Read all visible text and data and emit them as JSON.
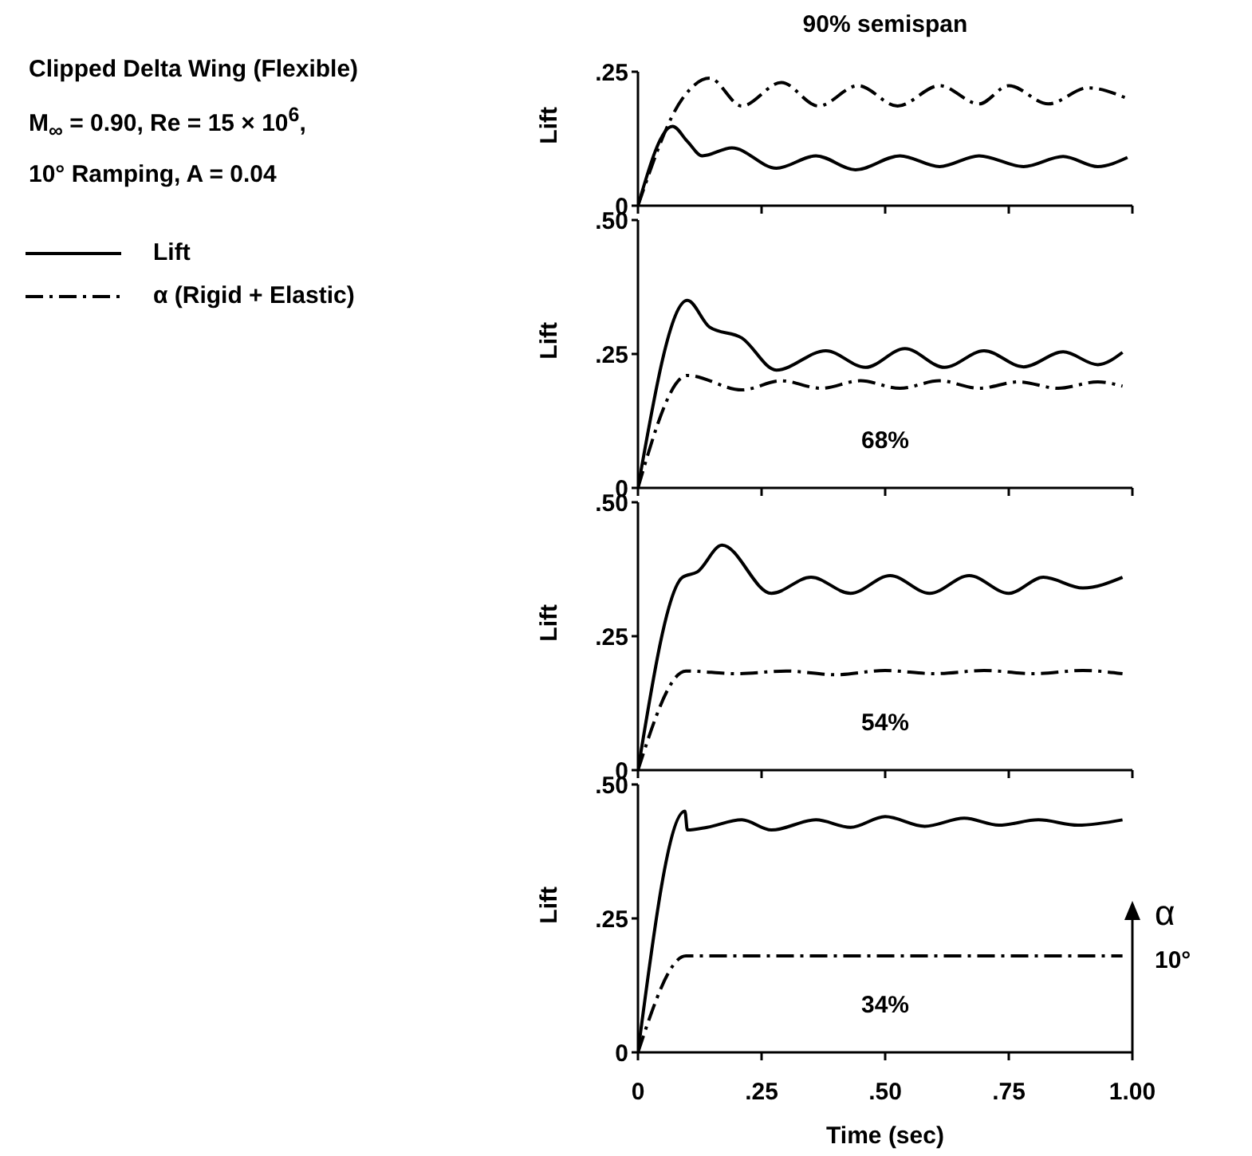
{
  "chart_data": [
    {
      "type": "line",
      "title": "90% semispan",
      "ylabel": "Lift",
      "legend": "left",
      "tick_labels": "y",
      "grid": false,
      "annotations": [
        "Clipped Delta Wing (Flexible)",
        "M$_{∞}$ = 0.90, Re = 15 × 10$^{6}$,",
        "10° Ramping, A = 0.04"
      ],
      "xlim": [
        0,
        1
      ],
      "xticks": [
        {
          "value": 0,
          "label": null
        },
        {
          "value": 0.25,
          "label": null
        },
        {
          "value": 0.5,
          "label": null
        },
        {
          "value": 0.75,
          "label": null
        },
        {
          "value": 1,
          "label": null
        }
      ],
      "ylim": [
        0,
        0.25
      ],
      "yticks": [
        {
          "value": 0,
          "label": "0"
        },
        {
          "value": 0.25,
          "label": ".25"
        }
      ],
      "series": [
        {
          "name": "Lift",
          "color": "#000000",
          "line_style": "solid",
          "x": [
            0,
            0.07,
            0.1,
            0.13,
            0.19,
            0.28,
            0.36,
            0.44,
            0.53,
            0.61,
            0.69,
            0.78,
            0.86,
            0.93,
            0.99
          ],
          "values": [
            0,
            0.148,
            0.12,
            0.093,
            0.108,
            0.07,
            0.093,
            0.067,
            0.093,
            0.073,
            0.093,
            0.073,
            0.092,
            0.073,
            0.09
          ]
        },
        {
          "name": "α (Rigid + Elastic)",
          "color": "#000000",
          "line_style": "dashed",
          "x": [
            0,
            0.09,
            0.145,
            0.21,
            0.29,
            0.365,
            0.445,
            0.525,
            0.61,
            0.69,
            0.75,
            0.83,
            0.91,
            0.99
          ],
          "values": [
            0,
            0.2,
            0.238,
            0.186,
            0.23,
            0.186,
            0.224,
            0.186,
            0.224,
            0.19,
            0.224,
            0.19,
            0.22,
            0.2
          ]
        }
      ]
    },
    {
      "type": "line",
      "title": "68%",
      "ylabel": "Lift",
      "tick_labels": "y",
      "grid": false,
      "xlim": [
        0,
        1
      ],
      "xticks": [
        {
          "value": 0,
          "label": null
        },
        {
          "value": 0.25,
          "label": null
        },
        {
          "value": 0.5,
          "label": null
        },
        {
          "value": 0.75,
          "label": null
        },
        {
          "value": 1,
          "label": null
        }
      ],
      "ylim": [
        0,
        0.5
      ],
      "yticks": [
        {
          "value": 0,
          "label": "0"
        },
        {
          "value": 0.25,
          "label": ".25"
        },
        {
          "value": 0.5,
          "label": ".50"
        }
      ],
      "series": [
        {
          "color": "#000000",
          "line_style": "solid",
          "x": [
            0,
            0.1,
            0.145,
            0.21,
            0.28,
            0.38,
            0.46,
            0.54,
            0.62,
            0.7,
            0.78,
            0.86,
            0.93,
            0.98
          ],
          "values": [
            0,
            0.35,
            0.3,
            0.28,
            0.22,
            0.256,
            0.225,
            0.26,
            0.225,
            0.256,
            0.226,
            0.254,
            0.23,
            0.253
          ]
        },
        {
          "color": "#000000",
          "line_style": "dashed",
          "x": [
            0,
            0.1,
            0.21,
            0.29,
            0.37,
            0.45,
            0.53,
            0.61,
            0.69,
            0.77,
            0.85,
            0.93,
            0.98
          ],
          "values": [
            0,
            0.21,
            0.183,
            0.2,
            0.186,
            0.2,
            0.186,
            0.2,
            0.186,
            0.198,
            0.186,
            0.198,
            0.19
          ]
        }
      ]
    },
    {
      "type": "line",
      "title": "54%",
      "ylabel": "Lift",
      "tick_labels": "y",
      "grid": false,
      "xlim": [
        0,
        1
      ],
      "xticks": [
        {
          "value": 0,
          "label": null
        },
        {
          "value": 0.25,
          "label": null
        },
        {
          "value": 0.5,
          "label": null
        },
        {
          "value": 0.75,
          "label": null
        },
        {
          "value": 1,
          "label": null
        }
      ],
      "ylim": [
        0,
        0.5
      ],
      "yticks": [
        {
          "value": 0,
          "label": "0"
        },
        {
          "value": 0.25,
          "label": ".25"
        },
        {
          "value": 0.5,
          "label": ".50"
        }
      ],
      "series": [
        {
          "color": "#000000",
          "line_style": "solid",
          "x": [
            0,
            0.09,
            0.12,
            0.17,
            0.27,
            0.35,
            0.43,
            0.51,
            0.59,
            0.67,
            0.75,
            0.82,
            0.9,
            0.98
          ],
          "values": [
            0,
            0.36,
            0.37,
            0.42,
            0.33,
            0.36,
            0.33,
            0.363,
            0.33,
            0.363,
            0.33,
            0.36,
            0.34,
            0.36
          ]
        },
        {
          "color": "#000000",
          "line_style": "dashed",
          "x": [
            0,
            0.097,
            0.2,
            0.3,
            0.4,
            0.5,
            0.6,
            0.7,
            0.8,
            0.9,
            0.98
          ],
          "values": [
            0,
            0.185,
            0.18,
            0.185,
            0.178,
            0.186,
            0.18,
            0.186,
            0.18,
            0.186,
            0.18
          ]
        }
      ]
    },
    {
      "type": "line",
      "title": "34%",
      "xlabel": "Time (sec)",
      "ylabel": "Lift",
      "grid": false,
      "annotations": [
        "α",
        "10°"
      ],
      "xlim": [
        0,
        1
      ],
      "xticks": [
        {
          "value": 0,
          "label": "0"
        },
        {
          "value": 0.25,
          "label": ".25"
        },
        {
          "value": 0.5,
          "label": ".50"
        },
        {
          "value": 0.75,
          "label": ".75"
        },
        {
          "value": 1,
          "label": "1.00"
        }
      ],
      "ylim": [
        0,
        0.5
      ],
      "yticks": [
        {
          "value": 0,
          "label": "0"
        },
        {
          "value": 0.25,
          "label": ".25"
        },
        {
          "value": 0.5,
          "label": ".50"
        }
      ],
      "series": [
        {
          "color": "#000000",
          "line_style": "solid",
          "x": [
            0,
            0.095,
            0.1,
            0.14,
            0.21,
            0.27,
            0.36,
            0.43,
            0.5,
            0.58,
            0.66,
            0.73,
            0.81,
            0.89,
            0.98
          ],
          "values": [
            0,
            0.45,
            0.415,
            0.42,
            0.434,
            0.415,
            0.434,
            0.42,
            0.44,
            0.422,
            0.437,
            0.424,
            0.434,
            0.424,
            0.434
          ]
        },
        {
          "color": "#000000",
          "line_style": "dashed",
          "x": [
            0,
            0.097,
            0.98
          ],
          "values": [
            0,
            0.18,
            0.18
          ]
        }
      ]
    }
  ]
}
